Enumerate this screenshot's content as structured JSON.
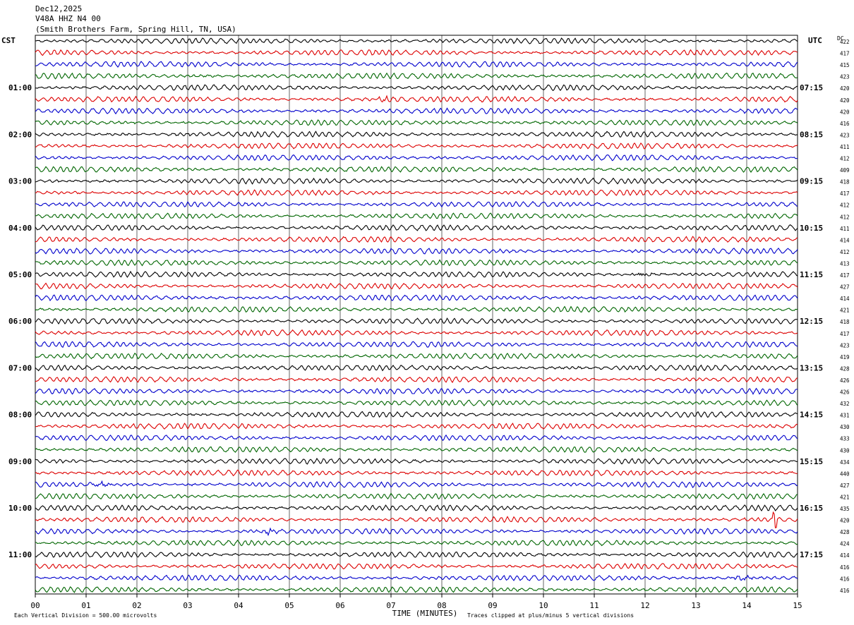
{
  "header": {
    "date": "Dec12,2025",
    "station": "V48A HHZ N4 00",
    "location": "(Smith Brothers Farm, Spring Hill, TN, USA)"
  },
  "axis": {
    "left_zone": "CST",
    "right_zone": "UTC",
    "dc_label": "DC",
    "time_title": "TIME (MINUTES)",
    "x_ticks": [
      "00",
      "01",
      "02",
      "03",
      "04",
      "05",
      "06",
      "07",
      "08",
      "09",
      "10",
      "11",
      "12",
      "13",
      "14",
      "15"
    ]
  },
  "footer": {
    "scale_note": "Each Vertical Division =  500.00 microvolts",
    "clip_note": "Traces clipped at plus/minus 5 vertical divisions"
  },
  "chart_data": {
    "type": "line",
    "title": "Dec12,2025",
    "x_range_minutes": [
      0,
      15
    ],
    "trace_count": 48,
    "trace_colors": [
      "#000000",
      "#dd0000",
      "#0000cc",
      "#006600"
    ],
    "left_hour_labels": [
      "01:00",
      "02:00",
      "03:00",
      "04:00",
      "05:00",
      "06:00",
      "07:00",
      "08:00",
      "09:00",
      "10:00",
      "11:00"
    ],
    "right_hour_labels": [
      "07:15",
      "08:15",
      "09:15",
      "10:15",
      "11:15",
      "12:15",
      "13:15",
      "14:15",
      "15:15",
      "16:15",
      "17:15"
    ],
    "dc_offsets": [
      422,
      417,
      415,
      423,
      420,
      420,
      420,
      416,
      423,
      411,
      412,
      409,
      418,
      417,
      412,
      412,
      411,
      414,
      412,
      413,
      417,
      427,
      414,
      421,
      418,
      417,
      423,
      419,
      428,
      426,
      426,
      432,
      431,
      430,
      433,
      430,
      434,
      440,
      427,
      421,
      435,
      420,
      428,
      424,
      414,
      416,
      416,
      416
    ],
    "events": [
      {
        "trace": 5,
        "minute": 6.9,
        "note": "burst"
      },
      {
        "trace": 20,
        "minute": 12.1,
        "note": "burst"
      },
      {
        "trace": 38,
        "minute": 1.3,
        "note": "burst"
      },
      {
        "trace": 41,
        "minute": 14.55,
        "note": "spike"
      },
      {
        "trace": 42,
        "minute": 4.6,
        "note": "burst"
      },
      {
        "trace": 46,
        "minute": 13.9,
        "note": "burst"
      }
    ]
  }
}
